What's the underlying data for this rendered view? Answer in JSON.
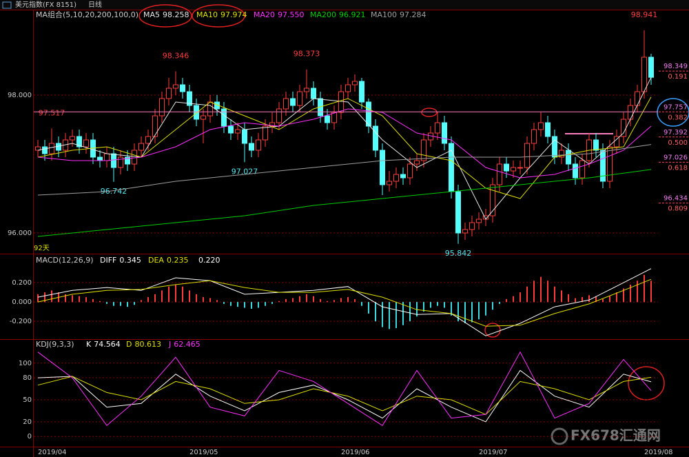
{
  "header": {
    "title": "美元指数(FX 8151)",
    "period": "日线"
  },
  "watermark": "FX678汇通网",
  "chart_data": [
    {
      "type": "candlestick",
      "title": "MA组合(5,10,20,200,100,0)",
      "period_label": "92天",
      "up_color": "#ff3c3c",
      "down_color": "#54ffff",
      "categories": [
        "2019/04",
        null,
        null,
        null,
        null,
        null,
        null,
        null,
        null,
        null,
        null,
        null,
        null,
        null,
        null,
        null,
        null,
        null,
        null,
        null,
        null,
        null,
        "2019/05",
        null,
        null,
        null,
        null,
        null,
        null,
        null,
        null,
        null,
        null,
        null,
        null,
        null,
        null,
        null,
        null,
        null,
        null,
        null,
        null,
        null,
        "2019/06",
        null,
        null,
        null,
        null,
        null,
        null,
        null,
        null,
        null,
        null,
        null,
        null,
        null,
        null,
        null,
        null,
        null,
        null,
        null,
        "2019/07",
        null,
        null,
        null,
        null,
        null,
        null,
        null,
        null,
        null,
        null,
        null,
        null,
        null,
        null,
        null,
        null,
        null,
        null,
        null,
        null,
        null,
        null,
        null,
        "2019/08",
        null
      ],
      "open": [
        97.2,
        97.25,
        97.15,
        97.3,
        97.2,
        97.35,
        97.4,
        97.25,
        97.35,
        97.1,
        97.05,
        97.15,
        96.95,
        97.1,
        97.0,
        97.2,
        97.3,
        97.4,
        97.7,
        97.95,
        98.1,
        98.15,
        98.05,
        97.85,
        97.65,
        97.7,
        97.9,
        97.8,
        97.55,
        97.45,
        97.5,
        97.3,
        97.2,
        97.35,
        97.55,
        97.6,
        97.8,
        97.95,
        97.85,
        98.05,
        98.1,
        97.95,
        97.7,
        97.6,
        97.75,
        98.05,
        98.15,
        98.2,
        97.9,
        97.55,
        97.2,
        96.7,
        96.75,
        96.85,
        96.8,
        97.0,
        97.05,
        97.35,
        97.45,
        97.6,
        97.3,
        96.6,
        96.0,
        96.05,
        96.15,
        96.2,
        96.25,
        96.7,
        97.0,
        96.9,
        96.95,
        96.95,
        97.3,
        97.5,
        97.6,
        97.4,
        97.1,
        97.2,
        97.0,
        96.8,
        97.05,
        97.35,
        97.2,
        96.75,
        97.25,
        97.4,
        97.65,
        97.85,
        98.05,
        98.55
      ],
      "high": [
        97.35,
        97.35,
        97.517,
        97.4,
        97.45,
        97.5,
        97.5,
        97.45,
        97.45,
        97.2,
        97.25,
        97.25,
        97.2,
        97.2,
        97.3,
        97.4,
        97.5,
        97.8,
        98.05,
        98.25,
        98.346,
        98.25,
        98.15,
        97.95,
        97.8,
        98.0,
        98.0,
        97.9,
        97.65,
        97.6,
        97.6,
        97.4,
        97.45,
        97.65,
        97.75,
        97.9,
        98.05,
        98.05,
        98.15,
        98.373,
        98.2,
        98.05,
        97.8,
        97.85,
        98.15,
        98.25,
        98.3,
        98.25,
        97.95,
        97.65,
        97.3,
        96.9,
        96.95,
        96.95,
        97.1,
        97.15,
        97.45,
        97.55,
        97.75,
        97.7,
        97.4,
        96.7,
        96.15,
        96.25,
        96.3,
        96.35,
        96.8,
        97.1,
        97.1,
        97.05,
        97.05,
        97.4,
        97.6,
        97.75,
        97.7,
        97.5,
        97.3,
        97.3,
        97.1,
        97.15,
        97.45,
        97.45,
        97.3,
        97.35,
        97.5,
        97.75,
        97.95,
        98.15,
        98.941,
        98.6
      ],
      "low": [
        97.1,
        97.05,
        97.05,
        97.1,
        97.1,
        97.25,
        97.15,
        97.15,
        97.0,
        96.95,
        96.95,
        96.742,
        96.85,
        96.9,
        96.9,
        97.1,
        97.2,
        97.3,
        97.6,
        97.85,
        98.0,
        97.95,
        97.75,
        97.55,
        97.3,
        97.6,
        97.7,
        97.45,
        97.35,
        97.35,
        97.027,
        97.1,
        97.1,
        97.25,
        97.45,
        97.5,
        97.7,
        97.75,
        97.75,
        97.95,
        97.85,
        97.6,
        97.5,
        97.5,
        97.65,
        97.95,
        98.05,
        97.8,
        97.45,
        97.1,
        96.55,
        96.6,
        96.65,
        96.7,
        96.7,
        96.9,
        96.95,
        97.25,
        97.35,
        97.2,
        96.5,
        95.842,
        95.9,
        95.95,
        96.05,
        96.1,
        96.15,
        96.6,
        96.8,
        96.8,
        96.85,
        96.85,
        97.2,
        97.4,
        97.3,
        97.0,
        97.0,
        96.9,
        96.7,
        96.7,
        96.95,
        97.1,
        96.65,
        96.65,
        97.15,
        97.3,
        97.55,
        97.75,
        97.95,
        98.15
      ],
      "close": [
        97.25,
        97.15,
        97.3,
        97.2,
        97.35,
        97.4,
        97.25,
        97.35,
        97.1,
        97.05,
        97.15,
        96.95,
        97.1,
        97.0,
        97.2,
        97.3,
        97.4,
        97.7,
        97.95,
        98.1,
        98.15,
        98.05,
        97.85,
        97.65,
        97.7,
        97.9,
        97.8,
        97.55,
        97.45,
        97.5,
        97.3,
        97.2,
        97.35,
        97.55,
        97.6,
        97.8,
        97.95,
        97.85,
        98.05,
        98.1,
        97.95,
        97.7,
        97.6,
        97.75,
        98.05,
        98.15,
        98.2,
        97.9,
        97.55,
        97.2,
        96.7,
        96.75,
        96.85,
        96.8,
        97.0,
        97.05,
        97.35,
        97.45,
        97.6,
        97.3,
        96.6,
        96.0,
        96.05,
        96.15,
        96.2,
        96.25,
        96.7,
        97.0,
        96.9,
        96.95,
        96.95,
        97.3,
        97.5,
        97.6,
        97.4,
        97.1,
        97.2,
        97.0,
        96.8,
        97.05,
        97.35,
        97.2,
        96.75,
        97.25,
        97.4,
        97.65,
        97.85,
        98.05,
        98.55,
        98.258
      ],
      "ylim": [
        95.73,
        99.08
      ],
      "yticks": [
        {
          "value": 98,
          "label": "98.000"
        },
        {
          "value": 96,
          "label": "96.000"
        }
      ],
      "grid": true,
      "series": [
        {
          "name": "MA5",
          "color": "#e8e8e8",
          "x": [
            0,
            5,
            10,
            15,
            20,
            25,
            30,
            35,
            40,
            45,
            50,
            55,
            60,
            65,
            70,
            75,
            80,
            85,
            89
          ],
          "values": [
            97.2,
            97.3,
            97.15,
            97.1,
            97.9,
            97.85,
            97.5,
            97.55,
            97.95,
            97.9,
            97.35,
            96.95,
            97.2,
            96.2,
            96.8,
            97.35,
            97.0,
            97.45,
            98.258
          ]
        },
        {
          "name": "MA10",
          "color": "#e0e000",
          "x": [
            0,
            5,
            10,
            15,
            20,
            25,
            30,
            35,
            40,
            45,
            50,
            55,
            60,
            65,
            70,
            75,
            80,
            85,
            89
          ],
          "values": [
            97.1,
            97.2,
            97.25,
            97.1,
            97.5,
            97.9,
            97.7,
            97.5,
            97.8,
            97.95,
            97.7,
            97.15,
            97.05,
            96.65,
            96.5,
            97.1,
            97.2,
            97.25,
            97.974
          ]
        },
        {
          "name": "MA20",
          "color": "#ff30ff",
          "x": [
            0,
            5,
            10,
            15,
            20,
            25,
            30,
            35,
            40,
            45,
            50,
            55,
            60,
            65,
            70,
            75,
            80,
            85,
            89
          ],
          "values": [
            97.1,
            97.05,
            97.05,
            97.1,
            97.25,
            97.5,
            97.6,
            97.55,
            97.65,
            97.8,
            97.75,
            97.45,
            97.35,
            96.95,
            96.8,
            96.85,
            97.0,
            97.2,
            97.55
          ],
          "value_labels": [
            null,
            null,
            null,
            null,
            null,
            null,
            null,
            null,
            null,
            null,
            null,
            null,
            null,
            null,
            null,
            null,
            null,
            null,
            "97.550"
          ]
        },
        {
          "name": "MA200",
          "color": "#00d000",
          "x": [
            0,
            10,
            20,
            30,
            40,
            50,
            60,
            70,
            80,
            89
          ],
          "values": [
            95.95,
            96.05,
            96.15,
            96.25,
            96.4,
            96.5,
            96.6,
            96.7,
            96.8,
            96.921
          ]
        },
        {
          "name": "MA100",
          "color": "#a0a0a0",
          "x": [
            0,
            10,
            20,
            30,
            40,
            50,
            60,
            70,
            80,
            89
          ],
          "values": [
            96.55,
            96.6,
            96.75,
            96.85,
            96.95,
            97.05,
            97.1,
            97.1,
            97.15,
            97.284
          ]
        }
      ],
      "fib_levels": [
        {
          "price": 98.349,
          "ratio": 0.191
        },
        {
          "price": 97.757,
          "ratio": 0.382
        },
        {
          "price": 97.392,
          "ratio": {
            "value": 0.5,
            "label": "0.500"
          }
        },
        {
          "price": 97.026,
          "ratio": 0.618
        },
        {
          "price": 96.434,
          "ratio": 0.809
        }
      ]
    },
    {
      "type": "macd",
      "title": "MACD(12,26,9)",
      "ylim": [
        -0.37,
        0.45
      ],
      "yticks": [
        {
          "value": 0.2,
          "label": "0.200"
        },
        {
          "value": 0,
          "label": "0.000"
        },
        {
          "value": -0.2,
          "label": "-0.200"
        }
      ],
      "grid": true,
      "series": [
        {
          "name": "DIFF",
          "color": "#ffffff",
          "x": [
            0,
            5,
            10,
            15,
            20,
            25,
            30,
            35,
            40,
            45,
            50,
            55,
            60,
            65,
            70,
            75,
            80,
            85,
            89
          ],
          "values": [
            0.05,
            0.12,
            0.15,
            0.12,
            0.25,
            0.22,
            0.08,
            0.1,
            0.12,
            0.16,
            -0.05,
            -0.13,
            -0.12,
            -0.35,
            -0.22,
            -0.05,
            0.02,
            0.2,
            0.345
          ]
        },
        {
          "name": "DEA",
          "color": "#e0e000",
          "x": [
            0,
            5,
            10,
            15,
            20,
            25,
            30,
            35,
            40,
            45,
            50,
            55,
            60,
            65,
            70,
            75,
            80,
            85,
            89
          ],
          "values": [
            0.0,
            0.08,
            0.12,
            0.13,
            0.18,
            0.22,
            0.15,
            0.1,
            0.1,
            0.13,
            0.05,
            -0.08,
            -0.12,
            -0.25,
            -0.24,
            -0.12,
            -0.02,
            0.12,
            0.235
          ]
        }
      ],
      "histogram": {
        "up_color": "#ff3c3c",
        "down_color": "#3cd8e0",
        "values": [
          0.08,
          0.1,
          0.12,
          0.1,
          0.08,
          0.07,
          0.06,
          0.05,
          0.03,
          0.01,
          -0.02,
          -0.04,
          -0.04,
          -0.05,
          -0.03,
          0.02,
          0.05,
          0.08,
          0.12,
          0.16,
          0.18,
          0.16,
          0.12,
          0.08,
          0.05,
          0.04,
          0.02,
          -0.02,
          -0.04,
          -0.05,
          -0.06,
          -0.07,
          -0.06,
          -0.04,
          -0.02,
          0.01,
          0.03,
          0.04,
          0.06,
          0.08,
          0.06,
          0.03,
          0.01,
          0.02,
          0.04,
          0.05,
          0.03,
          -0.04,
          -0.12,
          -0.2,
          -0.26,
          -0.28,
          -0.27,
          -0.24,
          -0.2,
          -0.15,
          -0.1,
          -0.06,
          -0.04,
          -0.06,
          -0.14,
          -0.2,
          -0.22,
          -0.21,
          -0.18,
          -0.14,
          -0.08,
          -0.02,
          0.03,
          0.06,
          0.1,
          0.16,
          0.22,
          0.26,
          0.22,
          0.16,
          0.12,
          0.08,
          0.04,
          0.05,
          0.07,
          0.06,
          0.03,
          0.06,
          0.1,
          0.14,
          0.18,
          0.22,
          0.28,
          0.22
        ],
        "value_labels": [
          null,
          null,
          null,
          null,
          null,
          null,
          null,
          null,
          null,
          null,
          null,
          null,
          null,
          null,
          null,
          null,
          null,
          null,
          null,
          null,
          null,
          null,
          null,
          null,
          null,
          null,
          null,
          null,
          null,
          null,
          null,
          null,
          null,
          null,
          null,
          null,
          null,
          null,
          null,
          null,
          null,
          null,
          null,
          null,
          null,
          null,
          null,
          null,
          null,
          null,
          null,
          null,
          null,
          null,
          null,
          null,
          null,
          null,
          null,
          null,
          null,
          null,
          null,
          null,
          null,
          null,
          null,
          null,
          null,
          null,
          null,
          null,
          null,
          null,
          null,
          null,
          null,
          null,
          null,
          null,
          null,
          null,
          null,
          null,
          null,
          null,
          null,
          null,
          null,
          "0.220"
        ]
      }
    },
    {
      "type": "kdj",
      "title": "KDJ(9,3,3)",
      "ylim": [
        -12,
        128
      ],
      "yticks": [
        100,
        80,
        50,
        20,
        0
      ],
      "grid": true,
      "series": [
        {
          "name": "K",
          "color": "#ffffff",
          "x": [
            0,
            5,
            10,
            15,
            20,
            25,
            30,
            35,
            40,
            45,
            50,
            55,
            60,
            65,
            70,
            75,
            80,
            85,
            89
          ],
          "values": [
            80,
            82,
            40,
            45,
            85,
            55,
            35,
            60,
            70,
            50,
            25,
            65,
            40,
            20,
            90,
            55,
            40,
            85,
            74.564
          ]
        },
        {
          "name": "D",
          "color": "#e0e000",
          "x": [
            0,
            5,
            10,
            15,
            20,
            25,
            30,
            35,
            40,
            45,
            50,
            55,
            60,
            65,
            70,
            75,
            80,
            85,
            89
          ],
          "values": [
            70,
            82,
            60,
            50,
            75,
            65,
            45,
            50,
            65,
            55,
            35,
            55,
            50,
            30,
            75,
            65,
            50,
            75,
            80.613
          ]
        },
        {
          "name": "J",
          "color": "#ff30ff",
          "x": [
            0,
            5,
            10,
            15,
            20,
            25,
            30,
            35,
            40,
            45,
            50,
            55,
            60,
            65,
            70,
            75,
            80,
            85,
            89
          ],
          "values": [
            115,
            80,
            15,
            55,
            108,
            40,
            28,
            90,
            75,
            45,
            15,
            90,
            25,
            30,
            115,
            25,
            45,
            105,
            62.465
          ]
        }
      ]
    }
  ]
}
